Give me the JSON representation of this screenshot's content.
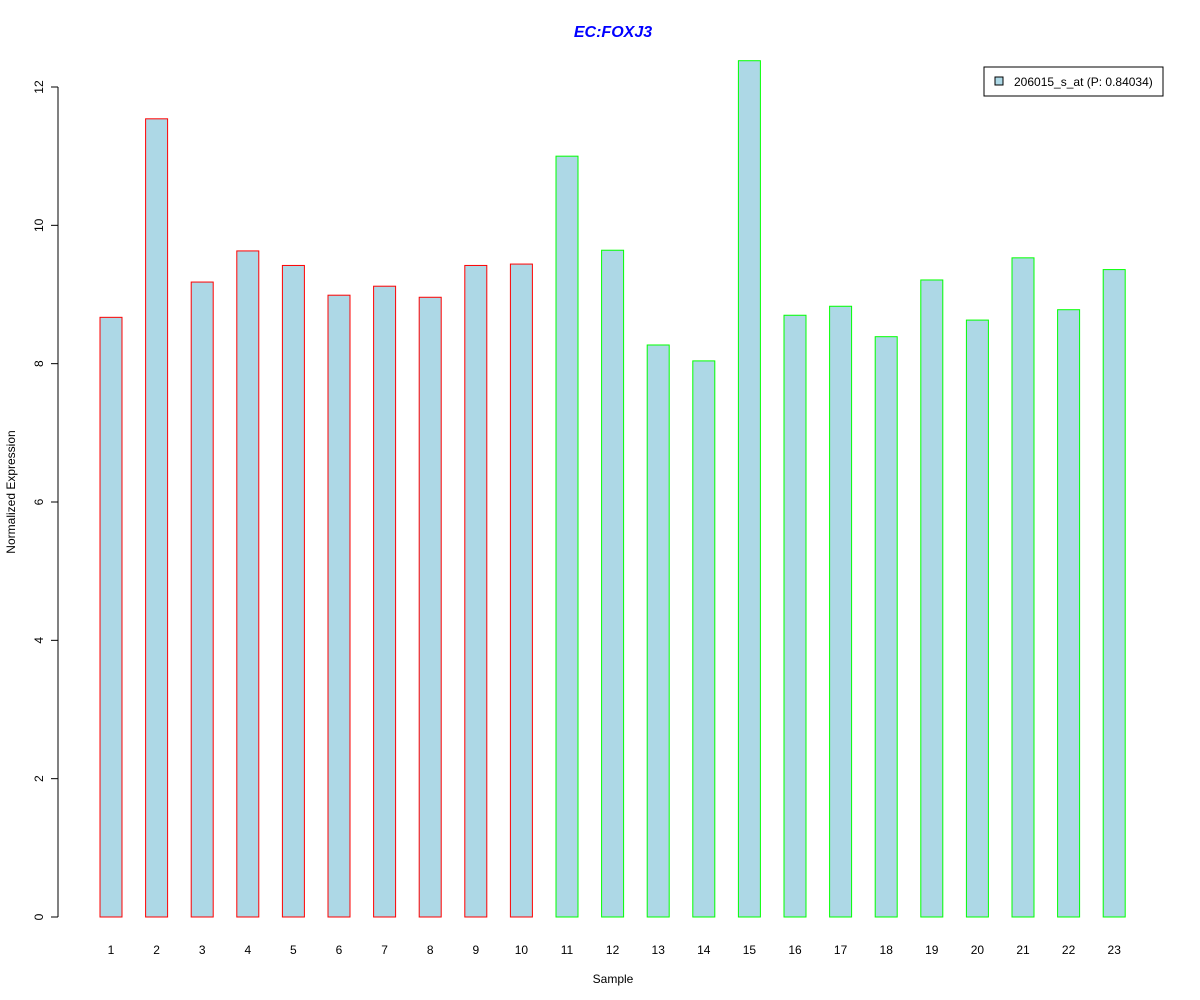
{
  "chart_data": {
    "type": "bar",
    "title": "EC:FOXJ3",
    "xlabel": "Sample",
    "ylabel": "Normalized Expression",
    "categories": [
      "1",
      "2",
      "3",
      "4",
      "5",
      "6",
      "7",
      "8",
      "9",
      "10",
      "11",
      "12",
      "13",
      "14",
      "15",
      "16",
      "17",
      "18",
      "19",
      "20",
      "21",
      "22",
      "23"
    ],
    "series": [
      {
        "name": "206015_s_at (P: 0.84034)",
        "values": [
          8.67,
          11.54,
          9.18,
          9.63,
          9.42,
          8.99,
          9.12,
          8.96,
          9.42,
          9.44,
          11.0,
          9.64,
          8.27,
          8.04,
          12.38,
          8.7,
          8.83,
          8.39,
          9.21,
          8.63,
          9.53,
          8.78,
          9.36
        ],
        "group_of": [
          1,
          1,
          1,
          1,
          1,
          1,
          1,
          1,
          1,
          1,
          2,
          2,
          2,
          2,
          2,
          2,
          2,
          2,
          2,
          2,
          2,
          2,
          2
        ]
      }
    ],
    "yticks": [
      "0",
      "2",
      "4",
      "6",
      "8",
      "10",
      "12"
    ],
    "ylim": [
      0,
      12.4
    ],
    "grid": false,
    "legend_position": "top-right",
    "colors": {
      "bar_fill": "#add8e6",
      "group1_border": "#ff0000",
      "group2_border": "#00ff00",
      "title": "#0000ff",
      "axis": "#000000"
    }
  }
}
